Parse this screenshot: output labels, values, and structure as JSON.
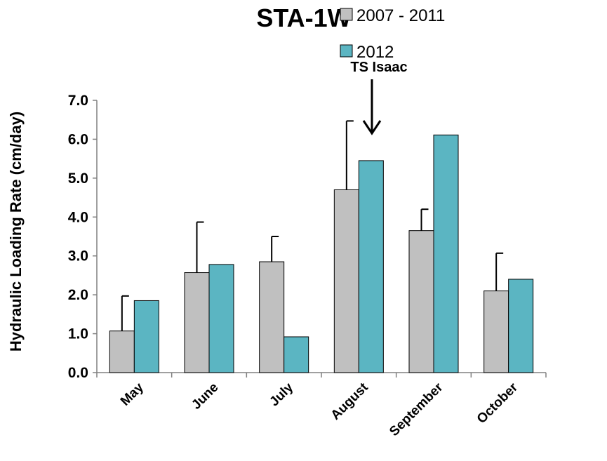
{
  "chart_data": {
    "type": "bar",
    "title": "STA-1W",
    "ylabel": "Hydraulic Loading Rate (cm/day)",
    "xlabel": "",
    "ylim": [
      0,
      7
    ],
    "yticks": [
      "0.0",
      "1.0",
      "2.0",
      "3.0",
      "4.0",
      "5.0",
      "6.0",
      "7.0"
    ],
    "categories": [
      "May",
      "June",
      "July",
      "August",
      "September",
      "October"
    ],
    "series": [
      {
        "name": "2007 - 2011",
        "color": "#c0c0c0",
        "values": [
          1.07,
          2.57,
          2.85,
          4.7,
          3.65,
          2.1
        ],
        "error_upper": [
          0.9,
          1.3,
          0.65,
          1.77,
          0.55,
          0.97
        ]
      },
      {
        "name": "2012",
        "color": "#5bb5c2",
        "values": [
          1.85,
          2.78,
          0.92,
          5.45,
          6.11,
          2.4
        ]
      }
    ],
    "legend_position": "top-right",
    "grid": false,
    "annotation": {
      "text": "TS Isaac",
      "category": "August",
      "series": "2012"
    }
  }
}
